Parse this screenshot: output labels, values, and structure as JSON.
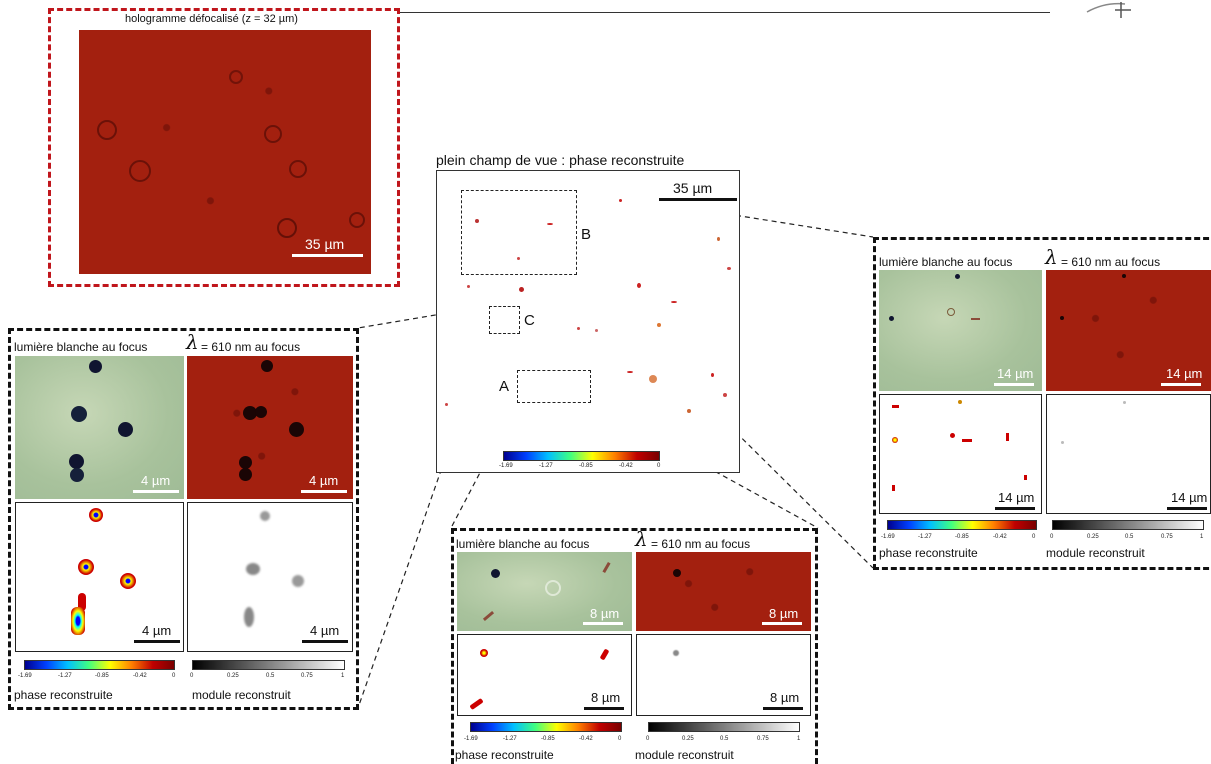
{
  "top_panel": {
    "title": "hologramme défocalisé (z = 32 µm)",
    "scalebar": "35 µm"
  },
  "main_panel": {
    "title": "plein champ de vue : phase reconstruite",
    "scalebar": "35 µm",
    "region_labels": [
      "B",
      "C",
      "A"
    ],
    "colorbar_ticks": [
      "-1.69",
      "-1.27",
      "-0.85",
      "-0.42",
      "0"
    ]
  },
  "panel_c": {
    "label_white": "lumière blanche au focus",
    "lambda_symbol": "λ",
    "label_lambda": "= 610 nm au focus",
    "scale_top_left": "4 µm",
    "scale_top_right": "4 µm",
    "scale_bottom_left": "4 µm",
    "scale_bottom_right": "4 µm",
    "phase_label": "phase reconstruite",
    "module_label": "module reconstruit",
    "phase_ticks": [
      "-1.69",
      "-1.27",
      "-0.85",
      "-0.42",
      "0"
    ],
    "module_ticks": [
      "0",
      "0.25",
      "0.5",
      "0.75",
      "1"
    ]
  },
  "panel_a": {
    "label_white": "lumière blanche au focus",
    "lambda_symbol": "λ",
    "label_lambda": "= 610 nm au focus",
    "scale_top_left": "8 µm",
    "scale_top_right": "8 µm",
    "scale_bottom_left": "8 µm",
    "scale_bottom_right": "8 µm",
    "phase_label": "phase reconstruite",
    "module_label": "module reconstruit",
    "phase_ticks": [
      "-1.69",
      "-1.27",
      "-0.85",
      "-0.42",
      "0"
    ],
    "module_ticks": [
      "0",
      "0.25",
      "0.5",
      "0.75",
      "1"
    ]
  },
  "panel_b": {
    "label_white": "lumière blanche au focus",
    "lambda_symbol": "λ",
    "label_lambda": "= 610 nm au focus",
    "scale_top_left": "14 µm",
    "scale_top_right": "14 µm",
    "scale_bottom_left": "14 µm",
    "scale_bottom_right": "14 µm",
    "phase_label": "phase reconstruite",
    "module_label": "module reconstruit",
    "phase_ticks": [
      "-1.69",
      "-1.27",
      "-0.85",
      "-0.42",
      "0"
    ],
    "module_ticks": [
      "0",
      "0.25",
      "0.5",
      "0.75",
      "1"
    ]
  },
  "colors": {
    "hologram_red": "#a3200f",
    "dashed_red": "#c0161c",
    "brightfield_green": "#a8c29c"
  }
}
